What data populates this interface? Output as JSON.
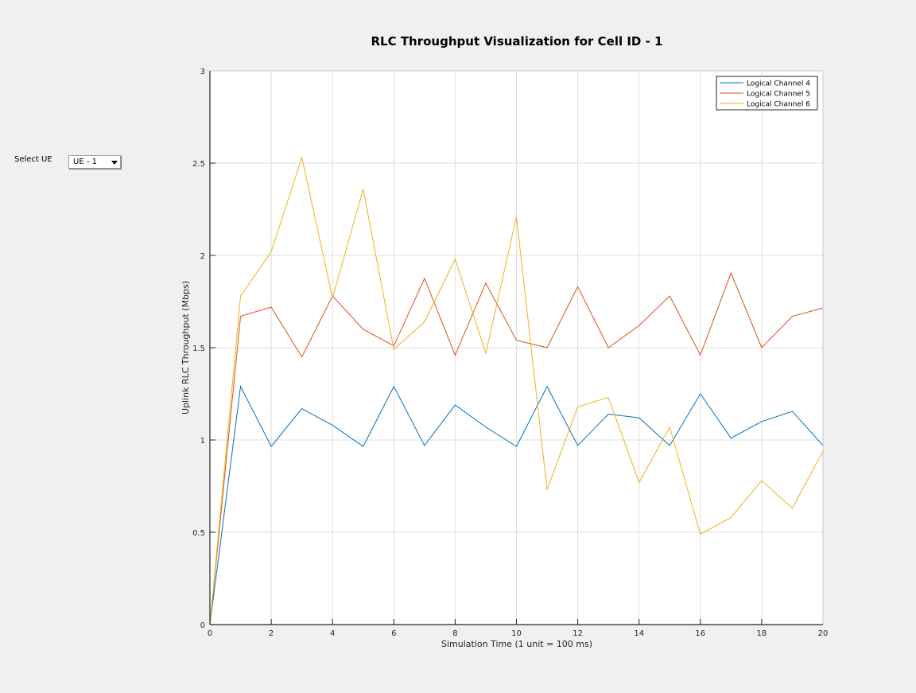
{
  "controls": {
    "select_label": "Select UE",
    "select_value": "UE - 1"
  },
  "chart_data": {
    "type": "line",
    "title": "RLC Throughput Visualization for Cell ID - 1",
    "xlabel": "Simulation Time (1 unit = 100 ms)",
    "ylabel": "Uplink RLC Throughput (Mbps)",
    "xlim": [
      0,
      20
    ],
    "ylim": [
      0,
      3
    ],
    "xticks": [
      0,
      2,
      4,
      6,
      8,
      10,
      12,
      14,
      16,
      18,
      20
    ],
    "yticks": [
      0,
      0.5,
      1,
      1.5,
      2,
      2.5,
      3
    ],
    "ytick_labels": [
      "0",
      "0.5",
      "1",
      "1.5",
      "2",
      "2.5",
      "3"
    ],
    "grid": true,
    "legend_position": "top-right",
    "x": [
      0,
      1,
      2,
      3,
      4,
      5,
      6,
      7,
      8,
      9,
      10,
      11,
      12,
      13,
      14,
      15,
      16,
      17,
      18,
      19,
      20
    ],
    "series": [
      {
        "name": "Logical Channel 4",
        "color": "#0072bd",
        "values": [
          0,
          1.29,
          0.965,
          1.17,
          1.08,
          0.965,
          1.29,
          0.97,
          1.19,
          1.07,
          0.965,
          1.29,
          0.97,
          1.14,
          1.12,
          0.97,
          1.25,
          1.01,
          1.1,
          1.155,
          0.97
        ]
      },
      {
        "name": "Logical Channel 5",
        "color": "#d95319",
        "values": [
          0,
          1.67,
          1.72,
          1.45,
          1.78,
          1.6,
          1.51,
          1.875,
          1.46,
          1.85,
          1.54,
          1.5,
          1.83,
          1.5,
          1.62,
          1.78,
          1.46,
          1.905,
          1.5,
          1.67,
          1.715
        ]
      },
      {
        "name": "Logical Channel 6",
        "color": "#edb120",
        "values": [
          0,
          1.78,
          2.02,
          2.53,
          1.77,
          2.36,
          1.49,
          1.64,
          1.98,
          1.47,
          2.21,
          0.73,
          1.18,
          1.23,
          0.77,
          1.07,
          0.49,
          0.58,
          0.78,
          0.63,
          0.94
        ]
      }
    ]
  }
}
